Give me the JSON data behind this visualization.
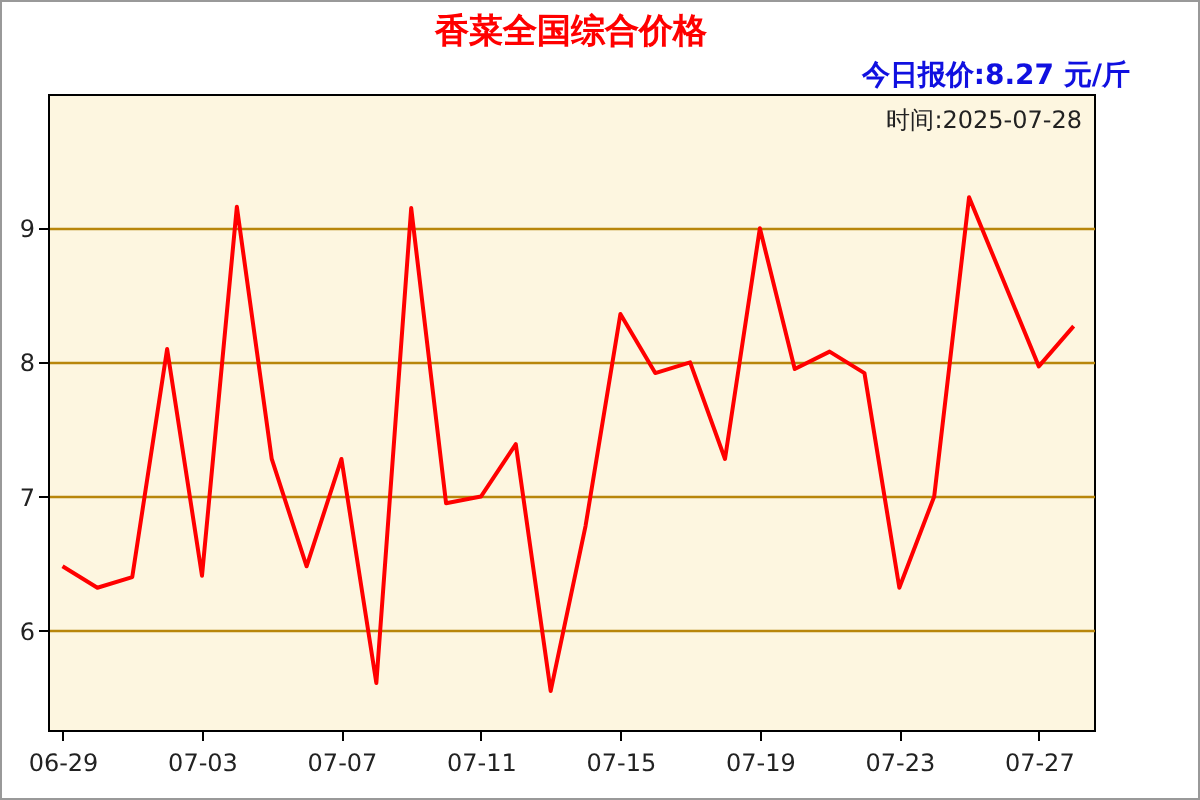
{
  "chart_data": {
    "type": "line",
    "title": "香菜全国综合价格",
    "subtitle": "今日报价:8.27 元/斤",
    "annotations": [
      "时间:2025-07-28"
    ],
    "x": [
      "--06-29",
      "--06-30",
      "--07-01",
      "--07-02",
      "--07-03",
      "--07-04",
      "--07-05",
      "--07-06",
      "--07-07",
      "--07-08",
      "--07-09",
      "--07-10",
      "--07-11",
      "--07-12",
      "--07-13",
      "--07-14",
      "--07-15",
      "--07-16",
      "--07-17",
      "--07-18",
      "--07-19",
      "--07-20",
      "--07-21",
      "--07-22",
      "--07-23",
      "--07-24",
      "--07-25",
      "--07-26",
      "--07-27",
      "--07-28"
    ],
    "series": [
      {
        "color": "#ff0000",
        "values": [
          6.48,
          6.32,
          6.4,
          8.1,
          6.41,
          9.16,
          7.28,
          6.48,
          7.28,
          5.61,
          9.15,
          6.95,
          7.0,
          7.39,
          5.55,
          6.78,
          8.36,
          7.92,
          8.0,
          7.28,
          9.0,
          7.95,
          8.08,
          7.92,
          6.32,
          7.0,
          9.23,
          8.6,
          7.97,
          8.27
        ]
      }
    ],
    "xlim": [
      "--06-28T14:00",
      "--07-28T14:00"
    ],
    "xticks": [
      {
        "value": "--06-29",
        "label": "06-29"
      },
      {
        "value": "--07-03",
        "label": "07-03"
      },
      {
        "value": "--07-07",
        "label": "07-07"
      },
      {
        "value": "--07-11",
        "label": "07-11"
      },
      {
        "value": "--07-15",
        "label": "07-15"
      },
      {
        "value": "--07-19",
        "label": "07-19"
      },
      {
        "value": "--07-23",
        "label": "07-23"
      },
      {
        "value": "--07-27",
        "label": "07-27"
      }
    ],
    "ylim": [
      5.26,
      10.0
    ],
    "yticks": [
      6,
      7,
      8,
      9
    ],
    "grid": "y",
    "marker": "none",
    "line_style": "solid"
  }
}
